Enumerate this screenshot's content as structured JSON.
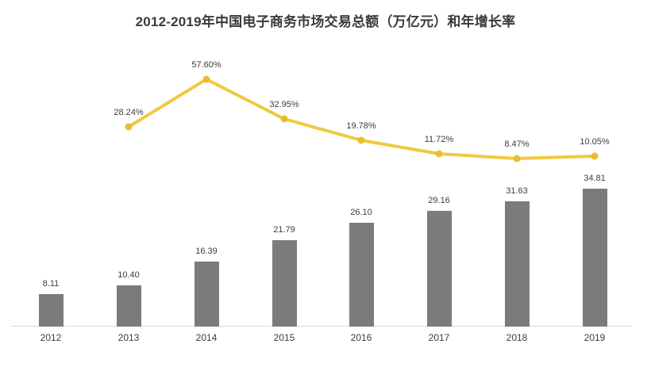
{
  "chart_data": {
    "type": "bar+line",
    "title": "2012-2019年中国电子商务市场交易总额（万亿元）和年增长率",
    "categories": [
      "2012",
      "2013",
      "2014",
      "2015",
      "2016",
      "2017",
      "2018",
      "2019"
    ],
    "series": [
      {
        "name": "交易总额（万亿元）",
        "type": "bar",
        "values": [
          8.11,
          10.4,
          16.39,
          21.79,
          26.1,
          29.16,
          31.63,
          34.81
        ],
        "labels": [
          "8.11",
          "10.40",
          "16.39",
          "21.79",
          "26.10",
          "29.16",
          "31.63",
          "34.81"
        ],
        "color": "#7b7b7b"
      },
      {
        "name": "年增长率",
        "type": "line",
        "values": [
          null,
          28.24,
          57.6,
          32.95,
          19.78,
          11.72,
          8.47,
          10.05
        ],
        "labels": [
          null,
          "28.24%",
          "57.60%",
          "32.95%",
          "19.78%",
          "11.72%",
          "8.47%",
          "10.05%"
        ],
        "color": "#f0c93f",
        "marker_color": "#e9bd2e"
      }
    ],
    "legend": "none",
    "grid": false,
    "axes_visible": false,
    "axis_line_color": "#d9d9d9",
    "label_color": "#3d3d3d",
    "background": "#ffffff"
  }
}
